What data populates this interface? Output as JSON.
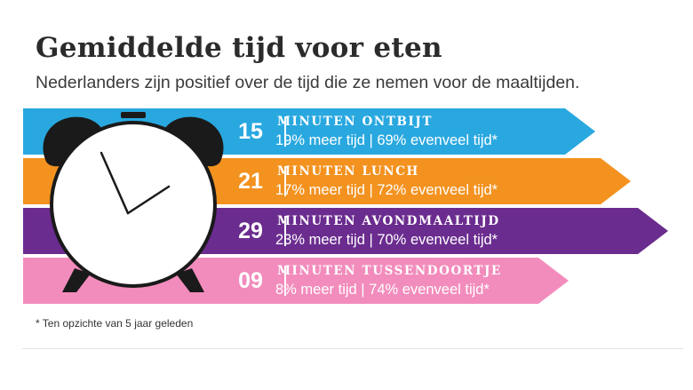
{
  "title": "Gemiddelde tijd voor eten",
  "subtitle": "Nederlanders zijn positief over de tijd die ze nemen voor de maaltijden.",
  "rows": [
    {
      "number": "15",
      "label": "MINUTEN ONTBIJT",
      "stat": "19% meer tijd | 69% evenveel tijd*",
      "color": "#29a8e0"
    },
    {
      "number": "21",
      "label": "MINUTEN LUNCH",
      "stat": "17% meer tijd | 72% evenveel tijd*",
      "color": "#f3921f"
    },
    {
      "number": "29",
      "label": "MINUTEN AVONDMAALTIJD",
      "stat": "23% meer tijd | 70% evenveel tijd*",
      "color": "#6b2c8f"
    },
    {
      "number": "09",
      "label": "MINUTEN TUSSENDOORTJE",
      "stat": "8% meer tijd | 74% evenveel tijd*",
      "color": "#f28cbc"
    }
  ],
  "footnote": "* Ten opzichte van 5 jaar geleden",
  "clock_icon": "alarm-clock-icon"
}
